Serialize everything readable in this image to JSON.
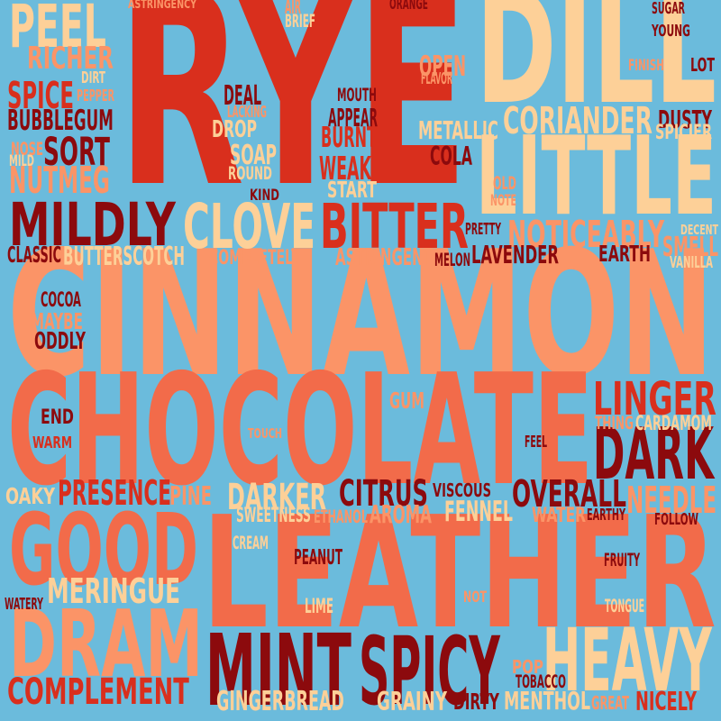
{
  "background": "#6bbbdc",
  "palette": {
    "red": "#d92f1d",
    "dark_red": "#8c0a0d",
    "orange": "#f26b4a",
    "salmon": "#fb9467",
    "peach": "#fdd098"
  },
  "words": [
    {
      "text": "RYE",
      "color": "red"
    },
    {
      "text": "DILL",
      "color": "peach"
    },
    {
      "text": "LITTLE",
      "color": "peach"
    },
    {
      "text": "CINNAMON",
      "color": "salmon"
    },
    {
      "text": "CHOCOLATE",
      "color": "orange"
    },
    {
      "text": "LEATHER",
      "color": "orange"
    },
    {
      "text": "GOOD",
      "color": "orange"
    },
    {
      "text": "DRAM",
      "color": "salmon"
    },
    {
      "text": "MINT",
      "color": "dark_red"
    },
    {
      "text": "SPICY",
      "color": "dark_red"
    },
    {
      "text": "HEAVY",
      "color": "peach"
    },
    {
      "text": "MILDLY",
      "color": "dark_red"
    },
    {
      "text": "CLOVE",
      "color": "peach"
    },
    {
      "text": "BITTER",
      "color": "red"
    },
    {
      "text": "LINGER",
      "color": "red"
    },
    {
      "text": "DARK",
      "color": "dark_red"
    },
    {
      "text": "PEEL",
      "color": "peach"
    },
    {
      "text": "CORIANDER",
      "color": "peach"
    },
    {
      "text": "SPICE",
      "color": "red"
    },
    {
      "text": "SORT",
      "color": "dark_red"
    },
    {
      "text": "NUTMEG",
      "color": "salmon"
    },
    {
      "text": "RICHER",
      "color": "salmon"
    },
    {
      "text": "BUBBLEGUM",
      "color": "dark_red"
    },
    {
      "text": "MERINGUE",
      "color": "peach"
    },
    {
      "text": "COMPLEMENT",
      "color": "red"
    },
    {
      "text": "PRESENCE",
      "color": "red"
    },
    {
      "text": "DARKER",
      "color": "peach"
    },
    {
      "text": "CITRUS",
      "color": "dark_red"
    },
    {
      "text": "OVERALL",
      "color": "dark_red"
    },
    {
      "text": "NEEDLE",
      "color": "salmon"
    },
    {
      "text": "NOTICEABLY",
      "color": "salmon"
    },
    {
      "text": "WEAK",
      "color": "red"
    },
    {
      "text": "BURNT",
      "color": "red"
    },
    {
      "text": "METALLIC",
      "color": "peach"
    },
    {
      "text": "DUSTY",
      "color": "dark_red"
    },
    {
      "text": "SPICIER",
      "color": "peach"
    },
    {
      "text": "COLA",
      "color": "dark_red"
    },
    {
      "text": "START",
      "color": "peach"
    },
    {
      "text": "SOAP",
      "color": "peach"
    },
    {
      "text": "DROP",
      "color": "peach"
    },
    {
      "text": "DEAL",
      "color": "dark_red"
    },
    {
      "text": "APPEAR",
      "color": "dark_red"
    },
    {
      "text": "OPEN",
      "color": "salmon"
    },
    {
      "text": "BUTTERSCOTCH",
      "color": "peach"
    },
    {
      "text": "CLASSIC",
      "color": "dark_red"
    },
    {
      "text": "ASTRINGENT",
      "color": "salmon"
    },
    {
      "text": "LAVENDER",
      "color": "dark_red"
    },
    {
      "text": "EARTH",
      "color": "dark_red"
    },
    {
      "text": "SMELL",
      "color": "salmon"
    },
    {
      "text": "FENNEL",
      "color": "peach"
    },
    {
      "text": "AROMA",
      "color": "salmon"
    },
    {
      "text": "GINGERBREAD",
      "color": "peach"
    },
    {
      "text": "GRAINY",
      "color": "peach"
    },
    {
      "text": "MENTHOL",
      "color": "peach"
    },
    {
      "text": "NICELY",
      "color": "red"
    },
    {
      "text": "DIRTY",
      "color": "dark_red"
    },
    {
      "text": "PINE",
      "color": "salmon"
    },
    {
      "text": "ODDLY",
      "color": "dark_red"
    },
    {
      "text": "MAYBE",
      "color": "salmon"
    },
    {
      "text": "COCOA",
      "color": "dark_red"
    },
    {
      "text": "WATER",
      "color": "salmon"
    },
    {
      "text": "VISCOUS",
      "color": "dark_red"
    },
    {
      "text": "SWEETNESS",
      "color": "peach"
    },
    {
      "text": "ETHANOL",
      "color": "salmon"
    },
    {
      "text": "CARDAMOM",
      "color": "peach"
    },
    {
      "text": "PEANUT",
      "color": "dark_red"
    },
    {
      "text": "LIME",
      "color": "peach"
    },
    {
      "text": "CREAM",
      "color": "peach"
    },
    {
      "text": "TOBACCO",
      "color": "dark_red"
    },
    {
      "text": "POP",
      "color": "salmon"
    },
    {
      "text": "FRUITY",
      "color": "dark_red"
    },
    {
      "text": "TONGUE",
      "color": "peach"
    },
    {
      "text": "WATERY",
      "color": "dark_red"
    },
    {
      "text": "END",
      "color": "dark_red"
    },
    {
      "text": "WARM",
      "color": "red"
    },
    {
      "text": "OAKY",
      "color": "peach"
    },
    {
      "text": "GUM",
      "color": "salmon"
    },
    {
      "text": "FEEL",
      "color": "dark_red"
    },
    {
      "text": "THING",
      "color": "salmon"
    },
    {
      "text": "EARTHY",
      "color": "dark_red"
    },
    {
      "text": "FOLLOW",
      "color": "dark_red"
    },
    {
      "text": "NOT",
      "color": "salmon"
    },
    {
      "text": "TOUCH",
      "color": "salmon"
    },
    {
      "text": "GREAT",
      "color": "salmon"
    },
    {
      "text": "ASTRINGENCY",
      "color": "salmon"
    },
    {
      "text": "AIR",
      "color": "salmon"
    },
    {
      "text": "BRIEF",
      "color": "peach"
    },
    {
      "text": "ORANGE",
      "color": "dark_red"
    },
    {
      "text": "SUGAR",
      "color": "dark_red"
    },
    {
      "text": "YOUNG",
      "color": "dark_red"
    },
    {
      "text": "FINISH",
      "color": "salmon"
    },
    {
      "text": "LOT",
      "color": "dark_red"
    },
    {
      "text": "DIRT",
      "color": "peach"
    },
    {
      "text": "PEPPER",
      "color": "salmon"
    },
    {
      "text": "FLAVOR",
      "color": "salmon"
    },
    {
      "text": "MOUTH",
      "color": "dark_red"
    },
    {
      "text": "LACKING",
      "color": "salmon"
    },
    {
      "text": "NOSE",
      "color": "salmon"
    },
    {
      "text": "MILD",
      "color": "peach"
    },
    {
      "text": "ROUND",
      "color": "peach"
    },
    {
      "text": "KIND",
      "color": "dark_red"
    },
    {
      "text": "OLD",
      "color": "salmon"
    },
    {
      "text": "NOTE",
      "color": "salmon"
    },
    {
      "text": "PRETTY",
      "color": "dark_red"
    },
    {
      "text": "DECENT",
      "color": "peach"
    },
    {
      "text": "VANILLA",
      "color": "peach"
    },
    {
      "text": "COMPLETELY",
      "color": "salmon"
    },
    {
      "text": "MELON",
      "color": "dark_red"
    }
  ]
}
